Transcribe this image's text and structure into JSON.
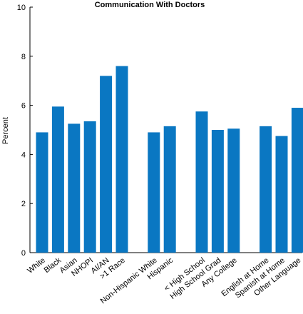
{
  "chart_data": {
    "type": "bar",
    "title": "Communication With Doctors",
    "xlabel": "",
    "ylabel": "Percent",
    "ylim": [
      0,
      10
    ],
    "yticks": [
      0,
      2,
      4,
      6,
      8,
      10
    ],
    "bar_color": "#0a77c2",
    "grid": false,
    "groups": [
      {
        "categories": [
          "White",
          "Black",
          "Asian",
          "NHOPI",
          "AI/AN",
          ">1 Race"
        ],
        "values": [
          4.9,
          5.95,
          5.25,
          5.35,
          7.2,
          7.6
        ]
      },
      {
        "categories": [
          "Non-Hispanic White",
          "Hispanic"
        ],
        "values": [
          4.9,
          5.15
        ]
      },
      {
        "categories": [
          "< High School",
          "High School Grad",
          "Any College"
        ],
        "values": [
          5.75,
          5.0,
          5.05
        ]
      },
      {
        "categories": [
          "English at Home",
          "Spanish at Home",
          "Other Language"
        ],
        "values": [
          5.15,
          4.75,
          5.9
        ]
      }
    ]
  }
}
